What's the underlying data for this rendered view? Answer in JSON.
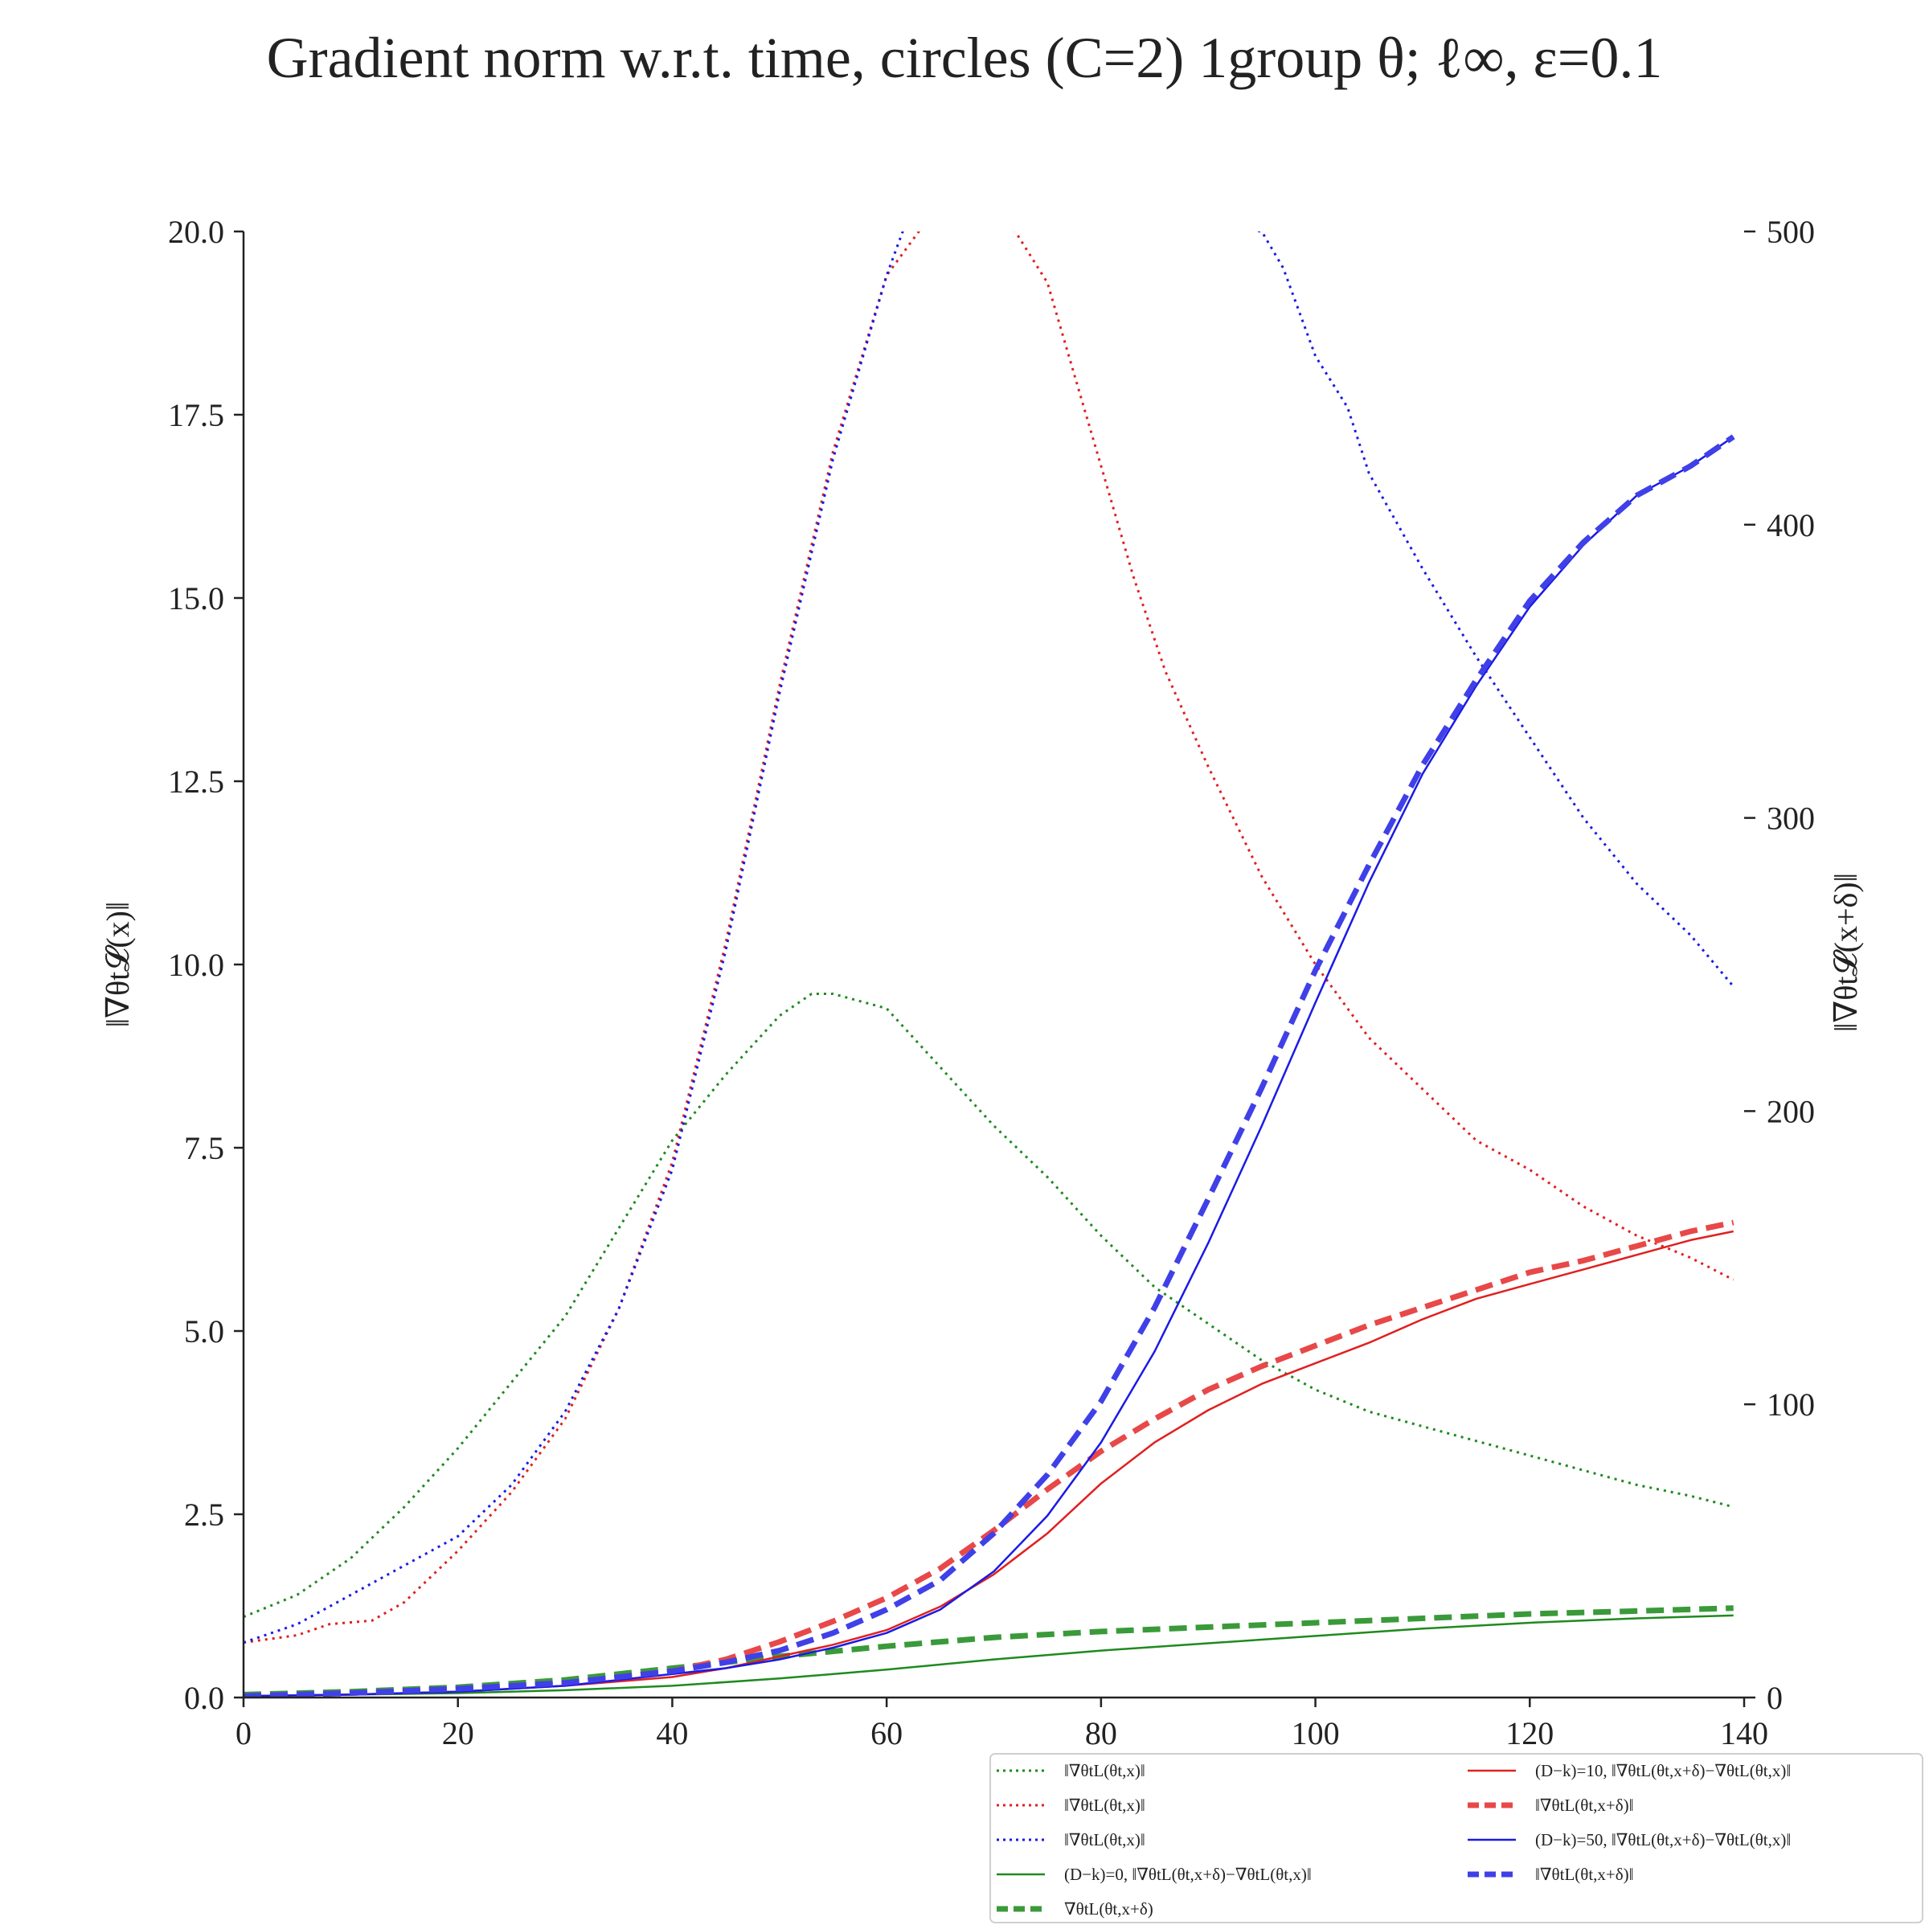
{
  "chart_data": {
    "type": "line",
    "title": "Gradient norm w.r.t. time, circles (C=2) 1group θ; ℓ∞, ε=0.1",
    "ylabel_left": "‖∇θt𝓛(x)‖",
    "ylabel_right": "‖∇θt𝓛(x+δ)‖",
    "xlim": [
      0,
      140
    ],
    "ylim_left": [
      0,
      20
    ],
    "ylim_right": [
      0,
      500
    ],
    "x_ticks": [
      "0",
      "20",
      "40",
      "60",
      "80",
      "100",
      "120",
      "140"
    ],
    "y_left_ticks": [
      "0.0",
      "2.5",
      "5.0",
      "7.5",
      "10.0",
      "12.5",
      "15.0",
      "17.5",
      "20.0"
    ],
    "y_right_ticks": [
      "0",
      "100",
      "200",
      "300",
      "400",
      "500"
    ],
    "grid": false,
    "legend_position": "bottom-right",
    "series": [
      {
        "name": "‖∇θtL(θt,x)‖",
        "axis": "left",
        "color": "#1f8a1f",
        "style": "dotted",
        "width": 3,
        "points": [
          [
            0,
            1.1
          ],
          [
            5,
            1.4
          ],
          [
            10,
            1.9
          ],
          [
            15,
            2.6
          ],
          [
            20,
            3.4
          ],
          [
            25,
            4.3
          ],
          [
            30,
            5.2
          ],
          [
            35,
            6.4
          ],
          [
            40,
            7.6
          ],
          [
            45,
            8.5
          ],
          [
            50,
            9.3
          ],
          [
            53,
            9.6
          ],
          [
            55,
            9.6
          ],
          [
            60,
            9.4
          ],
          [
            65,
            8.6
          ],
          [
            70,
            7.8
          ],
          [
            75,
            7.1
          ],
          [
            80,
            6.3
          ],
          [
            85,
            5.6
          ],
          [
            90,
            5.1
          ],
          [
            95,
            4.6
          ],
          [
            100,
            4.2
          ],
          [
            105,
            3.9
          ],
          [
            110,
            3.7
          ],
          [
            115,
            3.5
          ],
          [
            120,
            3.3
          ],
          [
            125,
            3.1
          ],
          [
            130,
            2.9
          ],
          [
            135,
            2.75
          ],
          [
            139,
            2.6
          ]
        ]
      },
      {
        "name": "‖∇θtL(θt,x)‖",
        "axis": "left",
        "color": "#e02020",
        "style": "dotted",
        "width": 3,
        "points": [
          [
            0,
            0.75
          ],
          [
            5,
            0.85
          ],
          [
            8,
            1.0
          ],
          [
            12,
            1.05
          ],
          [
            15,
            1.3
          ],
          [
            20,
            2.0
          ],
          [
            25,
            2.8
          ],
          [
            30,
            3.8
          ],
          [
            35,
            5.3
          ],
          [
            40,
            7.3
          ],
          [
            45,
            10.3
          ],
          [
            50,
            13.8
          ],
          [
            55,
            17.0
          ],
          [
            60,
            19.4
          ],
          [
            63,
            20.0
          ],
          [
            65,
            20.6
          ],
          [
            70,
            20.8
          ],
          [
            72,
            20.0
          ],
          [
            75,
            19.3
          ],
          [
            78,
            17.8
          ],
          [
            80,
            16.8
          ],
          [
            83,
            15.3
          ],
          [
            86,
            14.0
          ],
          [
            90,
            12.7
          ],
          [
            95,
            11.2
          ],
          [
            100,
            10.0
          ],
          [
            105,
            9.0
          ],
          [
            110,
            8.3
          ],
          [
            115,
            7.6
          ],
          [
            120,
            7.2
          ],
          [
            125,
            6.7
          ],
          [
            130,
            6.3
          ],
          [
            135,
            6.0
          ],
          [
            139,
            5.7
          ]
        ]
      },
      {
        "name": "‖∇θtL(θt,x)‖",
        "axis": "left",
        "color": "#1a1ae6",
        "style": "dotted",
        "width": 3,
        "points": [
          [
            0,
            0.75
          ],
          [
            5,
            1.0
          ],
          [
            10,
            1.4
          ],
          [
            15,
            1.8
          ],
          [
            20,
            2.2
          ],
          [
            25,
            2.9
          ],
          [
            30,
            3.9
          ],
          [
            35,
            5.3
          ],
          [
            40,
            7.2
          ],
          [
            45,
            10.2
          ],
          [
            50,
            13.7
          ],
          [
            55,
            16.9
          ],
          [
            60,
            19.4
          ],
          [
            63,
            20.6
          ],
          [
            95,
            20.0
          ],
          [
            97,
            19.5
          ],
          [
            100,
            18.3
          ],
          [
            103,
            17.6
          ],
          [
            105,
            16.7
          ],
          [
            110,
            15.4
          ],
          [
            115,
            14.2
          ],
          [
            120,
            13.1
          ],
          [
            125,
            12.0
          ],
          [
            130,
            11.1
          ],
          [
            135,
            10.4
          ],
          [
            139,
            9.7
          ]
        ]
      },
      {
        "name": "(D−k)=0, ‖∇θtL(θt,x+δ)−∇θtL(θt,x)‖",
        "axis": "right",
        "color": "#1f8a1f",
        "style": "solid",
        "width": 2.5,
        "points": [
          [
            0,
            0.5
          ],
          [
            10,
            1
          ],
          [
            20,
            1.5
          ],
          [
            30,
            2.5
          ],
          [
            40,
            4
          ],
          [
            50,
            6.5
          ],
          [
            60,
            9.5
          ],
          [
            70,
            13
          ],
          [
            80,
            16
          ],
          [
            90,
            18.5
          ],
          [
            100,
            21
          ],
          [
            110,
            23.5
          ],
          [
            120,
            25.5
          ],
          [
            130,
            27
          ],
          [
            139,
            28
          ]
        ]
      },
      {
        "name": "∇θtL(θt,x+δ)",
        "axis": "right",
        "color": "#3a9a3a",
        "style": "dashed",
        "width": 7,
        "points": [
          [
            0,
            1
          ],
          [
            10,
            2
          ],
          [
            20,
            3.5
          ],
          [
            30,
            6
          ],
          [
            40,
            10
          ],
          [
            50,
            14
          ],
          [
            60,
            17.5
          ],
          [
            70,
            20.5
          ],
          [
            80,
            22.5
          ],
          [
            90,
            24
          ],
          [
            100,
            25.5
          ],
          [
            110,
            27
          ],
          [
            120,
            28.5
          ],
          [
            130,
            29.5
          ],
          [
            139,
            30.5
          ]
        ]
      },
      {
        "name": "(D−k)=10, ‖∇θtL(θt,x+δ)−∇θtL(θt,x)‖",
        "axis": "right",
        "color": "#e02020",
        "style": "solid",
        "width": 2.5,
        "points": [
          [
            0,
            0.5
          ],
          [
            10,
            1
          ],
          [
            20,
            2
          ],
          [
            30,
            4
          ],
          [
            40,
            7
          ],
          [
            45,
            10
          ],
          [
            50,
            14
          ],
          [
            55,
            18
          ],
          [
            60,
            23
          ],
          [
            65,
            31
          ],
          [
            70,
            42
          ],
          [
            75,
            56
          ],
          [
            80,
            73
          ],
          [
            85,
            87
          ],
          [
            90,
            98
          ],
          [
            95,
            107
          ],
          [
            100,
            114
          ],
          [
            105,
            121
          ],
          [
            110,
            129
          ],
          [
            115,
            136
          ],
          [
            120,
            141
          ],
          [
            125,
            146
          ],
          [
            130,
            151
          ],
          [
            135,
            156
          ],
          [
            139,
            159
          ]
        ]
      },
      {
        "name": "‖∇θtL(θt,x+δ)‖",
        "axis": "right",
        "color": "#e84848",
        "style": "dashed",
        "width": 7,
        "points": [
          [
            0,
            0.5
          ],
          [
            10,
            1.5
          ],
          [
            20,
            3
          ],
          [
            30,
            5
          ],
          [
            40,
            9
          ],
          [
            45,
            13
          ],
          [
            50,
            19
          ],
          [
            55,
            26
          ],
          [
            60,
            34
          ],
          [
            65,
            44
          ],
          [
            70,
            57
          ],
          [
            75,
            71
          ],
          [
            80,
            84
          ],
          [
            85,
            95
          ],
          [
            90,
            105
          ],
          [
            95,
            113
          ],
          [
            100,
            120
          ],
          [
            105,
            127
          ],
          [
            110,
            133
          ],
          [
            115,
            139
          ],
          [
            120,
            145
          ],
          [
            125,
            149
          ],
          [
            130,
            154
          ],
          [
            135,
            159
          ],
          [
            139,
            162
          ]
        ]
      },
      {
        "name": "(D−k)=50, ‖∇θtL(θt,x+δ)−∇θtL(θt,x)‖",
        "axis": "right",
        "color": "#1a1ae6",
        "style": "solid",
        "width": 2.5,
        "points": [
          [
            0,
            0.5
          ],
          [
            10,
            1
          ],
          [
            20,
            2
          ],
          [
            30,
            4
          ],
          [
            40,
            8
          ],
          [
            45,
            10
          ],
          [
            50,
            13
          ],
          [
            55,
            17
          ],
          [
            60,
            22
          ],
          [
            65,
            30
          ],
          [
            70,
            43
          ],
          [
            75,
            62
          ],
          [
            80,
            87
          ],
          [
            85,
            118
          ],
          [
            90,
            155
          ],
          [
            95,
            195
          ],
          [
            100,
            237
          ],
          [
            105,
            278
          ],
          [
            110,
            315
          ],
          [
            115,
            345
          ],
          [
            120,
            372
          ],
          [
            125,
            393
          ],
          [
            130,
            410
          ],
          [
            135,
            420
          ],
          [
            139,
            430
          ]
        ]
      },
      {
        "name": "‖∇θtL(θt,x+δ)‖",
        "axis": "right",
        "color": "#4040e8",
        "style": "dashed",
        "width": 7,
        "points": [
          [
            0,
            0.5
          ],
          [
            10,
            1.5
          ],
          [
            20,
            3
          ],
          [
            30,
            5
          ],
          [
            40,
            9
          ],
          [
            45,
            12
          ],
          [
            50,
            16
          ],
          [
            55,
            22
          ],
          [
            60,
            30
          ],
          [
            65,
            40
          ],
          [
            70,
            56
          ],
          [
            75,
            76
          ],
          [
            80,
            101
          ],
          [
            85,
            133
          ],
          [
            90,
            170
          ],
          [
            95,
            208
          ],
          [
            100,
            248
          ],
          [
            105,
            284
          ],
          [
            110,
            318
          ],
          [
            115,
            347
          ],
          [
            120,
            374
          ],
          [
            125,
            394
          ],
          [
            130,
            410
          ],
          [
            135,
            420
          ],
          [
            139,
            430
          ]
        ]
      }
    ]
  }
}
